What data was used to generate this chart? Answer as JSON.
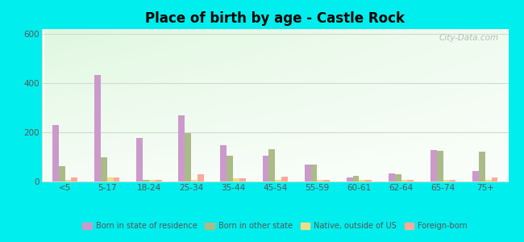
{
  "title": "Place of birth by age - Castle Rock",
  "categories": [
    "<5",
    "5-17",
    "18-24",
    "25-34",
    "35-44",
    "45-54",
    "55-59",
    "60-61",
    "62-64",
    "65-74",
    "75+"
  ],
  "series": {
    "Born in state of residence": [
      228,
      432,
      178,
      270,
      148,
      105,
      68,
      18,
      32,
      128,
      42
    ],
    "Born in other state": [
      62,
      100,
      5,
      198,
      105,
      132,
      68,
      22,
      30,
      125,
      120
    ],
    "Native, outside of US": [
      8,
      18,
      5,
      8,
      12,
      8,
      8,
      5,
      5,
      8,
      8
    ],
    "Foreign-born": [
      15,
      18,
      8,
      30,
      12,
      20,
      8,
      8,
      8,
      8,
      18
    ]
  },
  "colors": {
    "Born in state of residence": "#cc99cc",
    "Born in other state": "#aabb88",
    "Native, outside of US": "#eedd88",
    "Foreign-born": "#ffaa99"
  },
  "ylim": [
    0,
    620
  ],
  "yticks": [
    0,
    200,
    400,
    600
  ],
  "bar_width": 0.15,
  "figure_bg": "#00eeee",
  "watermark": "City-Data.com"
}
